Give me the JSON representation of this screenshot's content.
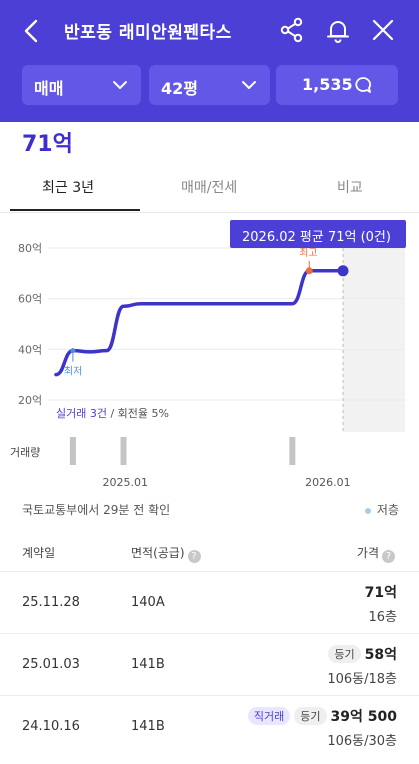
{
  "header": {
    "title": "반포동 래미안원펜타스",
    "filters": {
      "deal_type": "매매",
      "size": "42평",
      "comments_count": "1,535"
    }
  },
  "price_summary": "71억",
  "tabs": [
    {
      "label": "최근 3년",
      "active": true
    },
    {
      "label": "매매/전세",
      "active": false
    },
    {
      "label": "비교",
      "active": false
    }
  ],
  "tooltip": "2026.02 평균 71억 (0건)",
  "chart_data": {
    "type": "line",
    "y_ticks": [
      "80억",
      "60억",
      "40억",
      "20억"
    ],
    "ylim": [
      20,
      80
    ],
    "x_ticks": [
      "2025.01",
      "2026.01"
    ],
    "x_range": [
      "2024.09",
      "2026.02"
    ],
    "series": [
      {
        "x": [
          "2024.09",
          "2024.10",
          "2024.11",
          "2024.12",
          "2025.01",
          "2025.02",
          "2025.03",
          "2025.06",
          "2025.09",
          "2025.11",
          "2025.12",
          "2026.01",
          "2026.02"
        ],
        "values": [
          30,
          39.5,
          39,
          39.5,
          57,
          58,
          58,
          58,
          58,
          58,
          71,
          71,
          71
        ]
      }
    ],
    "annotations": {
      "min": "최저",
      "max": "최고"
    },
    "volume_label": "거래량",
    "volume": [
      {
        "x": "2024.10",
        "count": 1
      },
      {
        "x": "2025.01",
        "count": 1
      },
      {
        "x": "2025.11",
        "count": 1
      }
    ],
    "stats": {
      "label": "실거래 3건",
      "turnover": " / 회전율 5%"
    },
    "grid": true
  },
  "source": "국토교통부에서 29분 전 확인",
  "legend": {
    "low_label": "저층"
  },
  "table": {
    "headers": {
      "date": "계약일",
      "area": "면적(공급)",
      "price": "가격"
    },
    "rows": [
      {
        "date": "25.11.28",
        "area": "140A",
        "badges": [],
        "price": "71억",
        "floor": "16층"
      },
      {
        "date": "25.01.03",
        "area": "141B",
        "badges": [
          "등기"
        ],
        "price": "58억",
        "floor": "106동/18층"
      },
      {
        "date": "24.10.16",
        "area": "141B",
        "badges": [
          "직거래",
          "등기"
        ],
        "price": "39억 500",
        "floor": "106동/30층"
      }
    ]
  },
  "colors": {
    "brand": "#4b3fd6",
    "line": "#3d34c9",
    "max_marker": "#f26b3a",
    "min_marker": "#4a90e2"
  }
}
